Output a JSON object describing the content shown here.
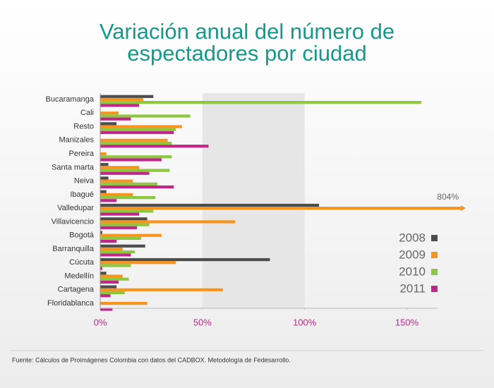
{
  "chart_data": {
    "type": "hbar",
    "title": [
      "Variación anual del número de",
      "espectadores por ciudad"
    ],
    "source": "Fuente: Cálculos de Proimágenes Colombia con datos del CADBOX. Metodología de Fedesarrollo.",
    "categories": [
      "Bucaramanga",
      "Cali",
      "Resto",
      "Manizales",
      "Pereira",
      "Santa marta",
      "Neiva",
      "Ibagué",
      "Valledupar",
      "Villavicencio",
      "Bogotá",
      "Barranquilla",
      "Cúcuta",
      "Medellín",
      "Cartagena",
      "Floridablanca"
    ],
    "series": [
      {
        "name": "2008",
        "color": "#4d4d4d",
        "values": [
          26,
          0,
          8,
          0,
          0,
          4,
          4,
          3,
          107,
          23,
          1,
          22,
          83,
          3,
          8,
          0
        ]
      },
      {
        "name": "2009",
        "color": "#f7941d",
        "values": [
          21,
          9,
          40,
          33,
          3,
          19,
          16,
          16,
          804,
          66,
          30,
          11,
          37,
          11,
          60,
          23
        ],
        "value_labels": [
          null,
          null,
          null,
          null,
          null,
          null,
          null,
          null,
          "804%",
          null,
          null,
          null,
          null,
          null,
          null,
          null
        ]
      },
      {
        "name": "2010",
        "color": "#8dc63f",
        "values": [
          157,
          44,
          37,
          35,
          35,
          34,
          28,
          27,
          26,
          24,
          20,
          17,
          15,
          14,
          12,
          0
        ]
      },
      {
        "name": "2011",
        "color": "#c1268b",
        "values": [
          19,
          15,
          36,
          53,
          30,
          24,
          36,
          8,
          19,
          18,
          8,
          15,
          1,
          9,
          5,
          6
        ]
      }
    ],
    "xlim": [
      0,
      165
    ],
    "xticks": [
      {
        "value": 0,
        "label": "0%"
      },
      {
        "value": 50,
        "label": "50%"
      },
      {
        "value": 100,
        "label": "100%"
      },
      {
        "value": 150,
        "label": "150%"
      }
    ],
    "shaded_range": [
      50,
      100
    ],
    "legend": "right"
  }
}
